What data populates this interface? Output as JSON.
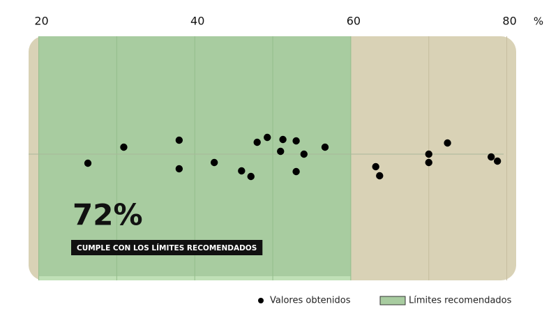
{
  "chart_data": {
    "type": "strip",
    "unit": "%",
    "xlim": [
      18.7,
      81.2
    ],
    "xticks": [
      20,
      40,
      60,
      80
    ],
    "xminorticks": [
      30,
      50,
      70
    ],
    "grid": true,
    "series": [
      {
        "name": "Valores obtenidos",
        "color": "#000000",
        "x": [
          26.3,
          30.9,
          38.0,
          38.0,
          42.5,
          46.0,
          47.2,
          48.0,
          49.3,
          51.0,
          51.3,
          53.0,
          53.0,
          54.0,
          56.7,
          63.2,
          63.7,
          70.0,
          70.0,
          72.4,
          78.0,
          78.8
        ]
      }
    ],
    "band": {
      "name": "Límites recomendados",
      "range": [
        20,
        60
      ],
      "color": "#a8cca0"
    },
    "headline": "72%",
    "caption": "CUMPLE CON LOS LÍMITES RECOMENDADOS"
  }
}
